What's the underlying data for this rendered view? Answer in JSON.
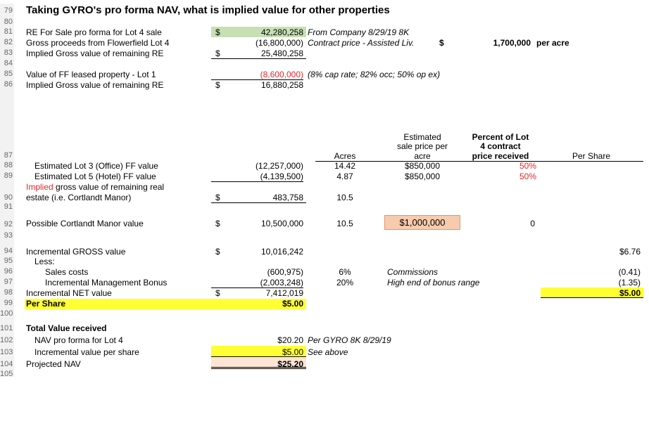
{
  "rows": [
    "79",
    "80",
    "81",
    "82",
    "83",
    "84",
    "85",
    "86",
    "87",
    "88",
    "89",
    "90",
    "91",
    "92",
    "93",
    "94",
    "95",
    "96",
    "97",
    "98",
    "99",
    "100",
    "101",
    "102",
    "103",
    "104",
    "105"
  ],
  "title": "Taking GYRO's pro forma NAV, what is implied value for other properties",
  "r81": {
    "label": "RE For Sale pro forma for Lot 4 sale",
    "cur": "$",
    "val": "42,280,258",
    "note": "From Company 8/29/19 8K"
  },
  "r82": {
    "label": "Gross proceeds from Flowerfield Lot 4",
    "val": "(16,800,000)",
    "note": "Contract price - Assisted Liv.",
    "cur2": "$",
    "val2": "1,700,000",
    "unit": "per acre"
  },
  "r83": {
    "label": "Implied Gross value of remaining RE",
    "cur": "$",
    "val": "25,480,258"
  },
  "r85": {
    "label": "Value of FF leased property - Lot 1",
    "val": "(8,600,000)",
    "note": "(8% cap rate; 82% occ; 50% op ex)"
  },
  "r86": {
    "label": "Implied Gross value of remaining RE",
    "cur": "$",
    "val": "16,880,258"
  },
  "hdr": {
    "acres": "Acres",
    "est_l1": "Estimated",
    "est_l2": "sale price per",
    "est_l3": "acre",
    "pct_l1": "Percent of Lot",
    "pct_l2": "4 contract",
    "pct_l3": "price received",
    "per_share": "Per Share"
  },
  "r88": {
    "label": "Estimated Lot 3 (Office) FF value",
    "val": "(12,257,000)",
    "acres": "14.42",
    "price": "$850,000",
    "pct": "50%"
  },
  "r89": {
    "label": "Estimated Lot 5 (Hotel) FF value",
    "val": "(4,139,500)",
    "acres": "4.87",
    "price": "$850,000",
    "pct": "50%"
  },
  "r90": {
    "label_red": "Implied",
    "label_rest": " gross value of remaining real",
    "label_l2": "estate (i.e. Cortlandt Manor)",
    "cur": "$",
    "val": "483,758",
    "acres": "10.5"
  },
  "r92": {
    "label": "Possible Cortlandt Manor value",
    "cur": "$",
    "val": "10,500,000",
    "acres": "10.5",
    "price": "$1,000,000",
    "zero": "0"
  },
  "r94": {
    "label": "Incremental GROSS value",
    "cur": "$",
    "val": "10,016,242",
    "ps": "$6.76"
  },
  "r95": {
    "label": "Less:"
  },
  "r96": {
    "label": "Sales costs",
    "val": "(600,975)",
    "pct": "6%",
    "note": "Commissions",
    "ps": "(0.41)"
  },
  "r97": {
    "label": "Incremental Management Bonus",
    "val": "(2,003,248)",
    "pct": "20%",
    "note": "High end of bonus range",
    "ps": "(1.35)"
  },
  "r98": {
    "label": "Incremental NET value",
    "cur": "$",
    "val": "7,412,019",
    "ps": "$5.00"
  },
  "r99": {
    "label": "Per Share",
    "val": "$5.00"
  },
  "r101": {
    "label": "Total Value received"
  },
  "r102": {
    "label": "NAV pro forma for Lot 4",
    "val": "$20.20",
    "note": "Per GYRO 8K 8/29/19"
  },
  "r103": {
    "label": "Incremental value per share",
    "val": "$5.00",
    "note": "See above"
  },
  "r104": {
    "label": "Projected NAV",
    "val": "$25.20"
  },
  "colors": {
    "green": "#c6e0b4",
    "yellow": "#ffff33",
    "orange": "#f8cbad",
    "pink": "#fce4d6",
    "red": "#e8252a"
  }
}
